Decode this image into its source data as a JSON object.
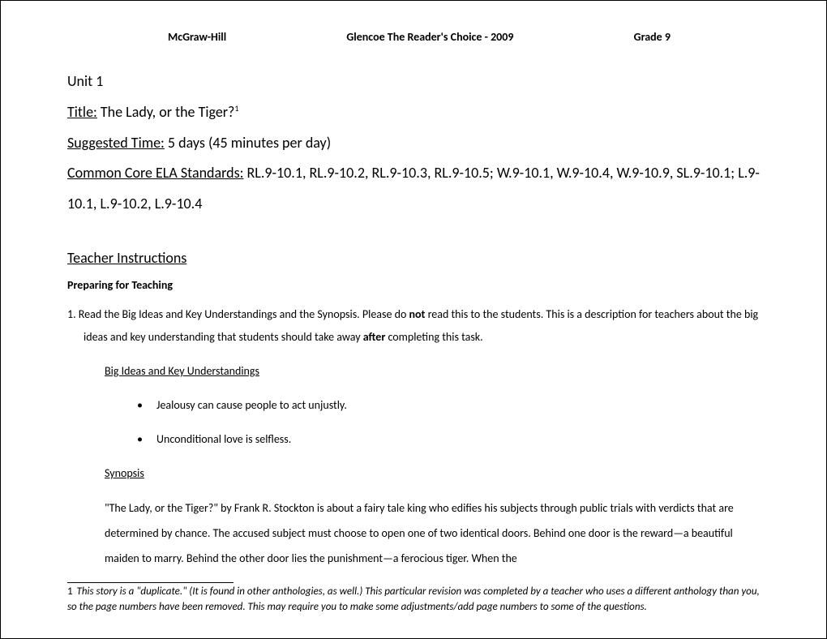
{
  "header": {
    "left": "McGraw-Hill",
    "center": "Glencoe The Reader's Choice - 2009",
    "right": "Grade 9"
  },
  "unit": "Unit 1",
  "title_label": "Title:",
  "title_value": " The Lady, or the Tiger?",
  "title_footnote_marker": "1",
  "time_label": "Suggested Time:",
  "time_value": " 5 days (45 minutes per day)",
  "standards_label": "Common Core ELA Standards:",
  "standards_value": " RL.9-10.1, RL.9-10.2, RL.9-10.3, RL.9-10.5; W.9-10.1, W.9-10.4, W.9-10.9, SL.9-10.1; L.9-10.1, L.9-10.2, L.9-10.4",
  "teacher_instructions_heading": "Teacher Instructions",
  "preparing_heading": "Preparing for Teaching",
  "item1_prefix": "1.   ",
  "item1_part1": "Read the Big Ideas and Key Understandings and the Synopsis. Please do ",
  "item1_bold1": "not",
  "item1_part2": " read this to the students. This is a description for teachers about the big ideas and key understanding that students should take away ",
  "item1_bold2": "after",
  "item1_part3": " completing this task.",
  "big_ideas_heading": "Big Ideas and Key Understandings",
  "bullets": [
    "Jealousy can cause people to act unjustly.",
    "Unconditional love is selfless."
  ],
  "synopsis_heading": "Synopsis",
  "synopsis_text": "\"The Lady, or the Tiger?\" by Frank R. Stockton is about a fairy tale king who edifies his subjects through public trials with verdicts that are determined by chance. The accused subject must choose to open one of two identical doors. Behind one door is the reward—a beautiful maiden to marry.  Behind the other door lies the punishment—a ferocious tiger.  When the",
  "footnote_number": "1",
  "footnote_text": " This story is a \"duplicate.\" (It is found in other anthologies, as well.) This particular revision was completed by a teacher who uses a different anthology than you, so the page numbers have been removed. This may require you to make some adjustments/add page numbers to some of the questions.",
  "colors": {
    "text": "#000000",
    "background": "#ffffff",
    "border": "#000000"
  },
  "fonts": {
    "body_pt": 14,
    "heading_pt": 18,
    "footnote_pt": 13
  }
}
